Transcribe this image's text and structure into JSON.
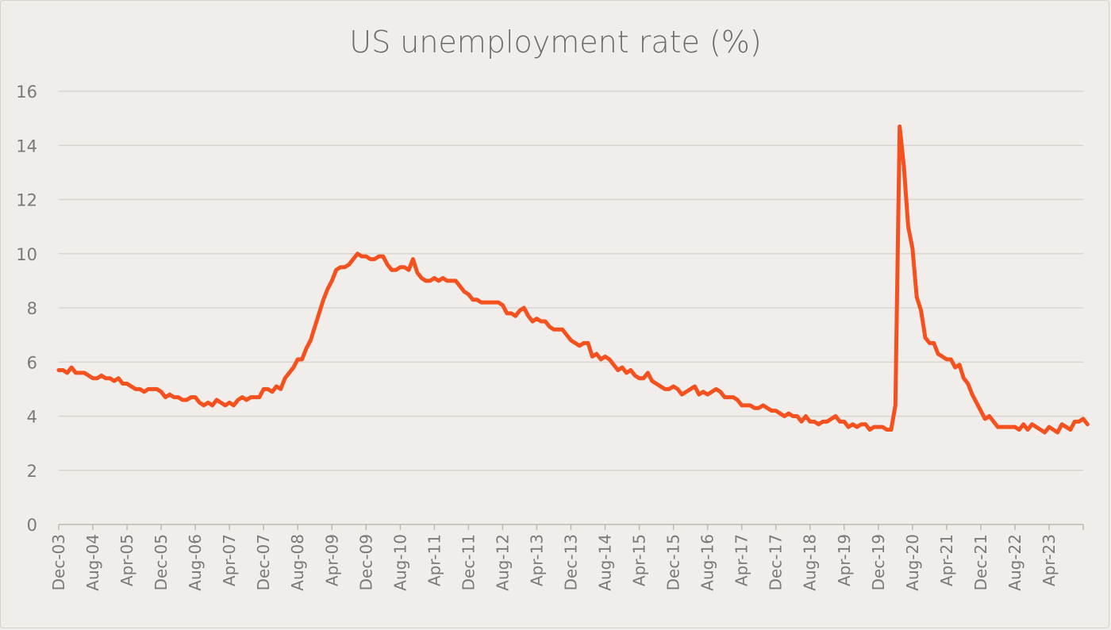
{
  "chart_data": {
    "type": "line",
    "title": "US unemployment rate (%)",
    "xlabel": "",
    "ylabel": "",
    "ylim": [
      0,
      16
    ],
    "yticks": [
      "0",
      "2",
      "4",
      "6",
      "8",
      "10",
      "12",
      "14",
      "16"
    ],
    "x_start": "Dec-03",
    "x_tick_every_months": 8,
    "x_tick_labels": [
      "Dec-03",
      "Aug-04",
      "Apr-05",
      "Dec-05",
      "Aug-06",
      "Apr-07",
      "Dec-07",
      "Aug-08",
      "Apr-09",
      "Dec-09",
      "Aug-10",
      "Apr-11",
      "Dec-11",
      "Aug-12",
      "Apr-13",
      "Dec-13",
      "Aug-14",
      "Apr-15",
      "Dec-15",
      "Aug-16",
      "Apr-17",
      "Dec-17",
      "Aug-18",
      "Apr-19",
      "Dec-19",
      "Aug-20",
      "Apr-21",
      "Dec-21",
      "Aug-22",
      "Apr-23"
    ],
    "series": [
      {
        "name": "US unemployment rate",
        "color": "#f4511e",
        "values": [
          5.7,
          5.7,
          5.6,
          5.8,
          5.6,
          5.6,
          5.6,
          5.5,
          5.4,
          5.4,
          5.5,
          5.4,
          5.4,
          5.3,
          5.4,
          5.2,
          5.2,
          5.1,
          5.0,
          5.0,
          4.9,
          5.0,
          5.0,
          5.0,
          4.9,
          4.7,
          4.8,
          4.7,
          4.7,
          4.6,
          4.6,
          4.7,
          4.7,
          4.5,
          4.4,
          4.5,
          4.4,
          4.6,
          4.5,
          4.4,
          4.5,
          4.4,
          4.6,
          4.7,
          4.6,
          4.7,
          4.7,
          4.7,
          5.0,
          5.0,
          4.9,
          5.1,
          5.0,
          5.4,
          5.6,
          5.8,
          6.1,
          6.1,
          6.5,
          6.8,
          7.3,
          7.8,
          8.3,
          8.7,
          9.0,
          9.4,
          9.5,
          9.5,
          9.6,
          9.8,
          10.0,
          9.9,
          9.9,
          9.8,
          9.8,
          9.9,
          9.9,
          9.6,
          9.4,
          9.4,
          9.5,
          9.5,
          9.4,
          9.8,
          9.3,
          9.1,
          9.0,
          9.0,
          9.1,
          9.0,
          9.1,
          9.0,
          9.0,
          9.0,
          8.8,
          8.6,
          8.5,
          8.3,
          8.3,
          8.2,
          8.2,
          8.2,
          8.2,
          8.2,
          8.1,
          7.8,
          7.8,
          7.7,
          7.9,
          8.0,
          7.7,
          7.5,
          7.6,
          7.5,
          7.5,
          7.3,
          7.2,
          7.2,
          7.2,
          7.0,
          6.8,
          6.7,
          6.6,
          6.7,
          6.7,
          6.2,
          6.3,
          6.1,
          6.2,
          6.1,
          5.9,
          5.7,
          5.8,
          5.6,
          5.7,
          5.5,
          5.4,
          5.4,
          5.6,
          5.3,
          5.2,
          5.1,
          5.0,
          5.0,
          5.1,
          5.0,
          4.8,
          4.9,
          5.0,
          5.1,
          4.8,
          4.9,
          4.8,
          4.9,
          5.0,
          4.9,
          4.7,
          4.7,
          4.7,
          4.6,
          4.4,
          4.4,
          4.4,
          4.3,
          4.3,
          4.4,
          4.3,
          4.2,
          4.2,
          4.1,
          4.0,
          4.1,
          4.0,
          4.0,
          3.8,
          4.0,
          3.8,
          3.8,
          3.7,
          3.8,
          3.8,
          3.9,
          4.0,
          3.8,
          3.8,
          3.6,
          3.7,
          3.6,
          3.7,
          3.7,
          3.5,
          3.6,
          3.6,
          3.6,
          3.5,
          3.5,
          4.4,
          14.7,
          13.2,
          11.0,
          10.2,
          8.4,
          7.9,
          6.9,
          6.7,
          6.7,
          6.3,
          6.2,
          6.1,
          6.1,
          5.8,
          5.9,
          5.4,
          5.2,
          4.8,
          4.5,
          4.2,
          3.9,
          4.0,
          3.8,
          3.6,
          3.6,
          3.6,
          3.6,
          3.6,
          3.5,
          3.7,
          3.5,
          3.7,
          3.6,
          3.5,
          3.4,
          3.6,
          3.5,
          3.4,
          3.7,
          3.6,
          3.5,
          3.8,
          3.8,
          3.9,
          3.7
        ]
      }
    ]
  }
}
